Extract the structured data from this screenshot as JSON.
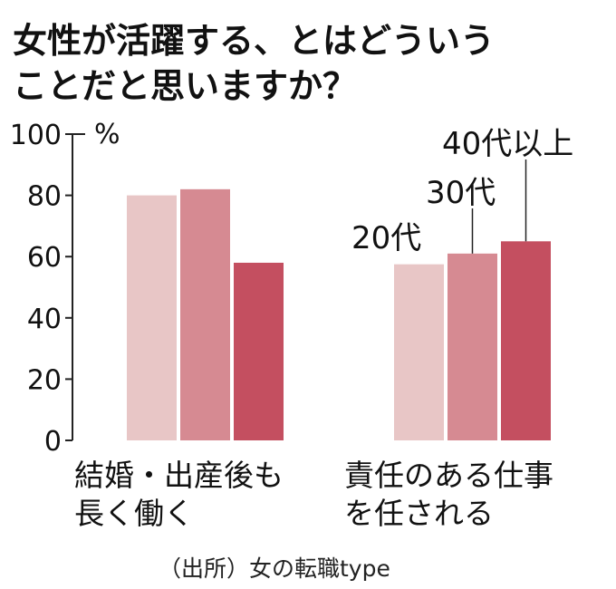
{
  "title_lines": [
    "女性が活躍する、とはどういう",
    "ことだと思いますか？"
  ],
  "source": "（出所）女の転職type",
  "colors": {
    "series_20": "#e8c6c6",
    "series_30": "#d68a92",
    "series_40": "#c44f60",
    "axis": "#222222",
    "text": "#111111"
  },
  "chart_data": {
    "type": "bar",
    "title": "女性が活躍する、とはどういうことだと思いますか？",
    "unit": "%",
    "ylim": [
      0,
      100
    ],
    "yticks": [
      "0",
      "20",
      "40",
      "60",
      "80",
      "100"
    ],
    "grid": false,
    "categories": [
      [
        "結婚・出産後も",
        "長く働く"
      ],
      [
        "責任のある仕事",
        "を任される"
      ]
    ],
    "series": [
      {
        "name": "20代",
        "values": [
          80,
          57.5
        ]
      },
      {
        "name": "30代",
        "values": [
          82,
          61
        ]
      },
      {
        "name": "40代以上",
        "values": [
          58,
          65
        ]
      }
    ],
    "legend_placement": "labels-above-bars-right"
  }
}
